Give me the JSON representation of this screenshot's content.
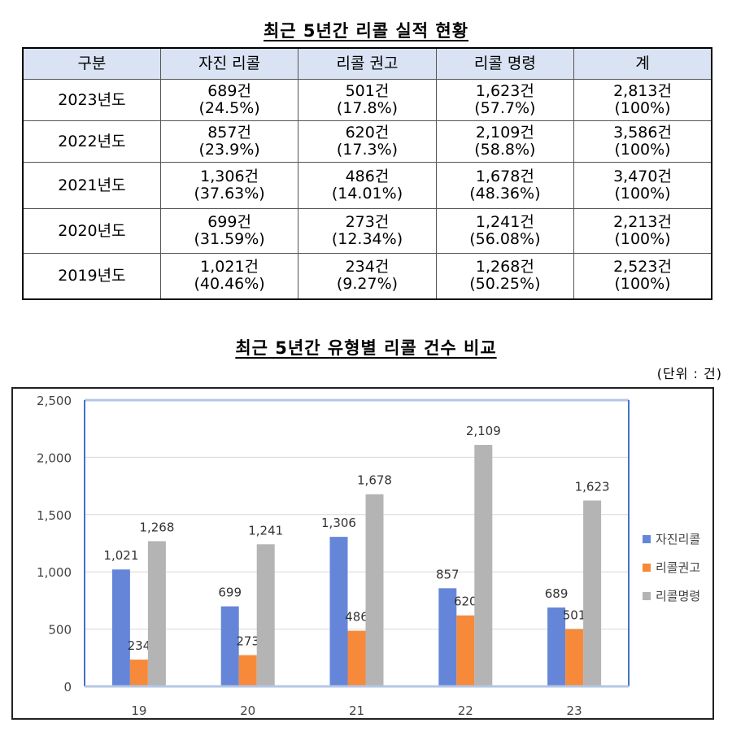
{
  "table_title": "최근 5년간 리콜 실적 현황",
  "table": {
    "headers": [
      "구분",
      "자진 리콜",
      "리콜 권고",
      "리콜 명령",
      "계"
    ],
    "rows": [
      {
        "year": "2023년도",
        "cells": [
          [
            "689건",
            "(24.5%)"
          ],
          [
            "501건",
            "(17.8%)"
          ],
          [
            "1,623건",
            "(57.7%)"
          ],
          [
            "2,813건",
            "(100%)"
          ]
        ]
      },
      {
        "year": "2022년도",
        "cells": [
          [
            "857건",
            "(23.9%)"
          ],
          [
            "620건",
            "(17.3%)"
          ],
          [
            "2,109건",
            "(58.8%)"
          ],
          [
            "3,586건",
            "(100%)"
          ]
        ]
      },
      {
        "year": "2021년도",
        "cells": [
          [
            "1,306건",
            "(37.63%)"
          ],
          [
            "486건",
            "(14.01%)"
          ],
          [
            "1,678건",
            "(48.36%)"
          ],
          [
            "3,470건",
            "(100%)"
          ]
        ]
      },
      {
        "year": "2020년도",
        "cells": [
          [
            "699건",
            "(31.59%)"
          ],
          [
            "273건",
            "(12.34%)"
          ],
          [
            "1,241건",
            "(56.08%)"
          ],
          [
            "2,213건",
            "(100%)"
          ]
        ]
      },
      {
        "year": "2019년도",
        "cells": [
          [
            "1,021건",
            "(40.46%)"
          ],
          [
            "234건",
            "(9.27%)"
          ],
          [
            "1,268건",
            "(50.25%)"
          ],
          [
            "2,523건",
            "(100%)"
          ]
        ]
      }
    ]
  },
  "chart_title": "최근 5년간 유형별 리콜 건수 비교",
  "unit_label": "(단위 : 건)",
  "chart_data": {
    "type": "bar",
    "categories": [
      "19",
      "20",
      "21",
      "22",
      "23"
    ],
    "series": [
      {
        "name": "자진리콜",
        "values": [
          1021,
          699,
          1306,
          857,
          689
        ],
        "labels": [
          "1,021",
          "699",
          "1,306",
          "857",
          "689"
        ],
        "color": "#6586d8"
      },
      {
        "name": "리콜권고",
        "values": [
          234,
          273,
          486,
          620,
          501
        ],
        "labels": [
          "234",
          "273",
          "486",
          "620",
          "501"
        ],
        "color": "#f68a3a"
      },
      {
        "name": "리콜명령",
        "values": [
          1268,
          1241,
          1678,
          2109,
          1623
        ],
        "labels": [
          "1,268",
          "1,241",
          "1,678",
          "2,109",
          "1,623"
        ],
        "color": "#b4b4b4"
      }
    ],
    "ylim": [
      0,
      2500
    ],
    "yticks": [
      0,
      500,
      1000,
      1500,
      2000,
      2500
    ],
    "ytick_labels": [
      "0",
      "500",
      "1,000",
      "1,500",
      "2,000",
      "2,500"
    ],
    "grid": true,
    "legend": "right"
  }
}
